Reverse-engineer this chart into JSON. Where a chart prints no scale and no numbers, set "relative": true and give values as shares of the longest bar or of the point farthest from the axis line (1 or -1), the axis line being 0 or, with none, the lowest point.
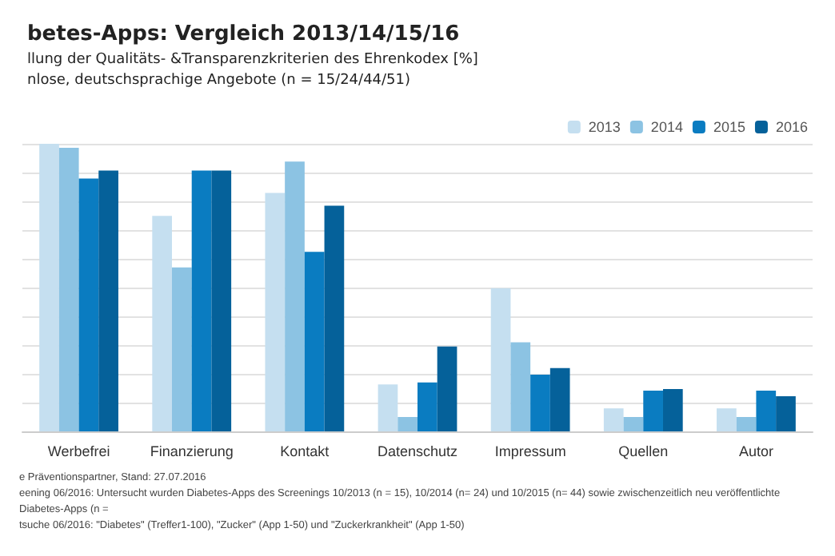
{
  "chart_data": {
    "type": "bar",
    "title": "betes-Apps: Vergleich 2013/14/15/16",
    "subtitle": "llung der Qualitäts- &Transparenzkriterien des Ehrenkodex [%]\nnlose, deutschsprachige Angebote (n = 15/24/44/51)",
    "categories": [
      "Werbefrei",
      "Finanzierung",
      "Kontakt",
      "Datenschutz",
      "Impressum",
      "Quellen",
      "Autor"
    ],
    "relative": true,
    "grid": "y",
    "legend": "top right",
    "series": [
      {
        "name": "2013",
        "color": "#c5dff0",
        "values": [
          1,
          0.749,
          0.829,
          0.163,
          0.498,
          0.08,
          0.08
        ]
      },
      {
        "name": "2014",
        "color": "#8cc3e3",
        "values": [
          0.986,
          0.57,
          0.938,
          0.05,
          0.31,
          0.05,
          0.05
        ]
      },
      {
        "name": "2015",
        "color": "#0a7cc1",
        "values": [
          0.879,
          0.907,
          0.624,
          0.17,
          0.197,
          0.142,
          0.142
        ]
      },
      {
        "name": "2016",
        "color": "#05619a",
        "values": [
          0.907,
          0.907,
          0.785,
          0.295,
          0.22,
          0.147,
          0.122
        ]
      }
    ],
    "annotations": [
      "e Präventionspartner, Stand: 27.07.2016",
      "eening 06/2016: Untersucht wurden Diabetes-Apps des Screenings 10/2013 (n = 15), 10/2014 (n= 24) und 10/2015 (n= 44) sowie zwischenzeitlich neu veröffentlichte Diabetes-Apps (n =",
      "tsuche 06/2016: \"Diabetes\" (Treffer1-100), \"Zucker\" (App 1-50) und \"Zuckerkrankheit\" (App 1-50)"
    ]
  }
}
